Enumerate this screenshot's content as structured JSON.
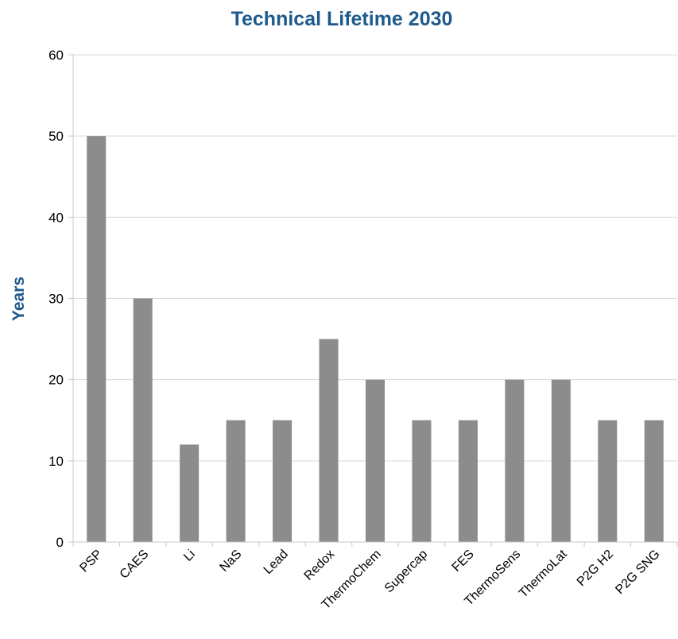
{
  "chart_data": {
    "type": "bar",
    "title": "Technical Lifetime 2030",
    "xlabel": "",
    "ylabel": "Years",
    "ylim": [
      0,
      60
    ],
    "yticks": [
      0,
      10,
      20,
      30,
      40,
      50,
      60
    ],
    "grid": true,
    "categories": [
      "PSP",
      "CAES",
      "Li",
      "NaS",
      "Lead",
      "Redox",
      "ThermoChem",
      "Supercap",
      "FES",
      "ThermoSens",
      "ThermoLat",
      "P2G H2",
      "P2G SNG"
    ],
    "values": [
      50,
      30,
      12,
      15,
      15,
      25,
      20,
      15,
      15,
      20,
      20,
      15,
      15
    ],
    "bar_color": "#8c8c8c",
    "title_color": "#1f5a8c"
  }
}
